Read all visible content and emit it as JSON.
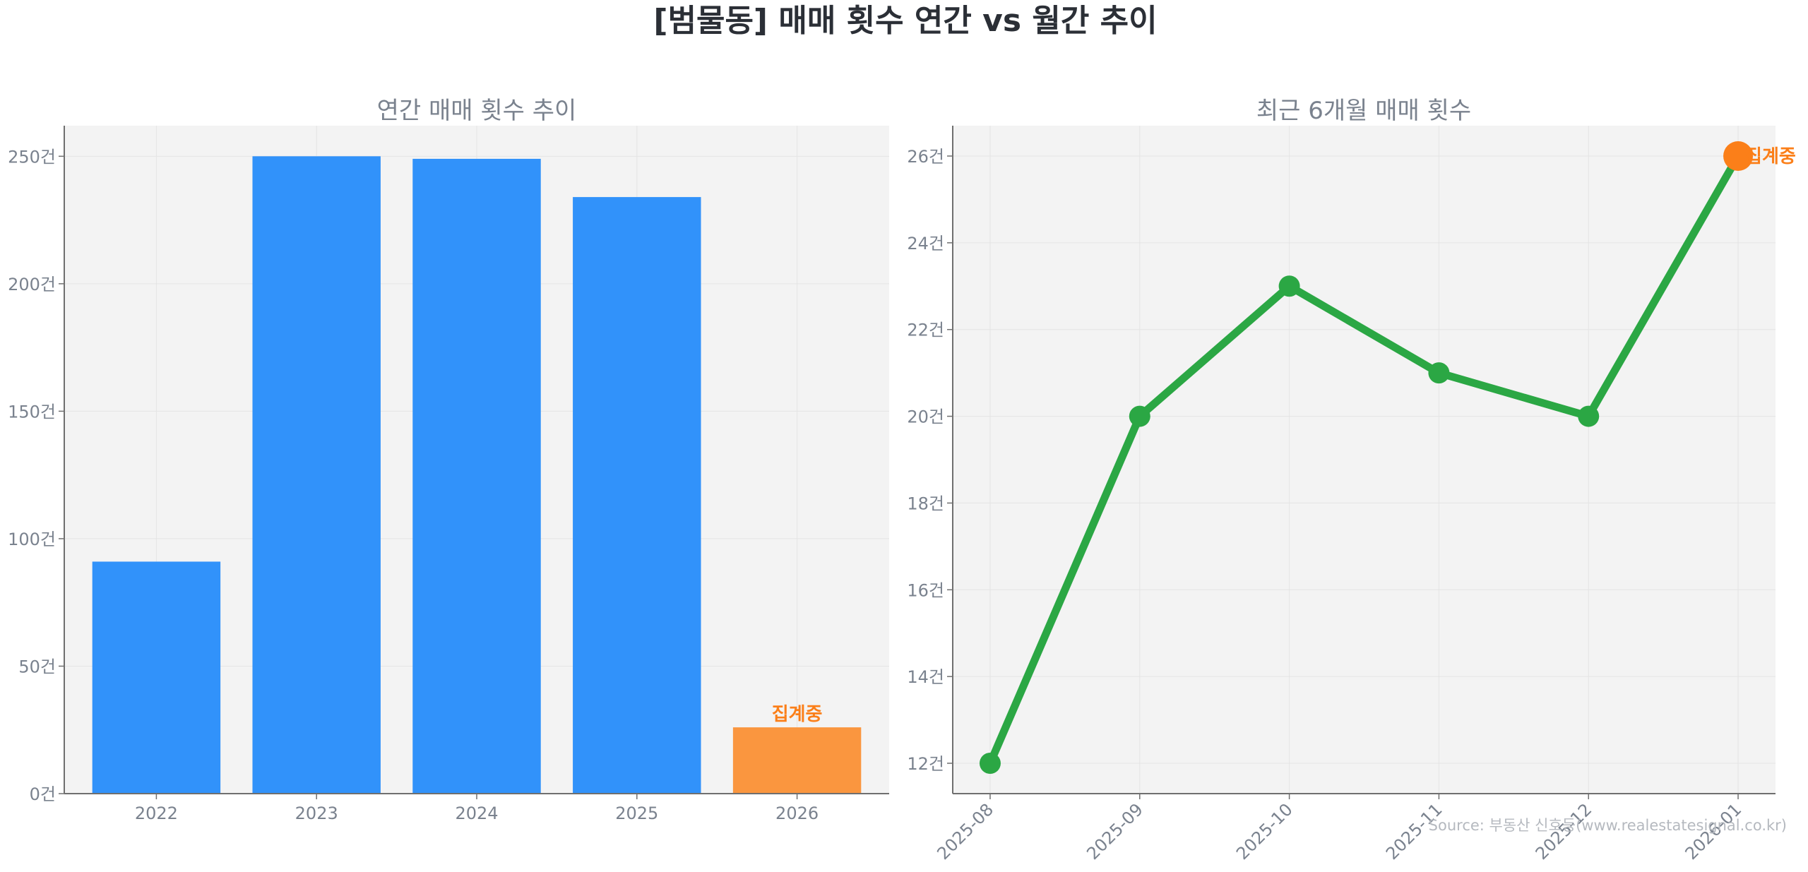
{
  "title": "[범물동] 매매 횟수 연간 vs 월간 추이",
  "source": "Source: 부동산 신호등(www.realestatesignal.co.kr)",
  "colors": {
    "bar": "#3192fa",
    "bar_partial": "#fa963f",
    "line": "#2ba744",
    "highlight": "#fb7f19",
    "panel_bg": "#f3f3f3",
    "grid": "#e4e4e4",
    "axis": "#6f6f6f",
    "text_muted": "#7a828e"
  },
  "chart_data": [
    {
      "type": "bar",
      "title": "연간 매매 횟수 추이",
      "categories": [
        "2022",
        "2023",
        "2024",
        "2025",
        "2026"
      ],
      "values": [
        91,
        250,
        249,
        234,
        26
      ],
      "ylim": [
        0,
        262
      ],
      "yticks": [
        0,
        50,
        100,
        150,
        200,
        250
      ],
      "tick_suffix": "건",
      "highlight_category": "2026",
      "annotation": {
        "category": "2026",
        "text": "집계중"
      },
      "grid": true
    },
    {
      "type": "line",
      "title": "최근 6개월 매매 횟수",
      "x": [
        "2025-08",
        "2025-09",
        "2025-10",
        "2025-11",
        "2025-12",
        "2026-01"
      ],
      "values": [
        12,
        20,
        23,
        21,
        20,
        26
      ],
      "ylim": [
        11.3,
        26.7
      ],
      "yticks": [
        12,
        14,
        16,
        18,
        20,
        22,
        24,
        26
      ],
      "tick_suffix": "건",
      "highlight_x": "2026-01",
      "annotation": {
        "x": "2026-01",
        "text": "집계중"
      },
      "grid": true
    }
  ]
}
